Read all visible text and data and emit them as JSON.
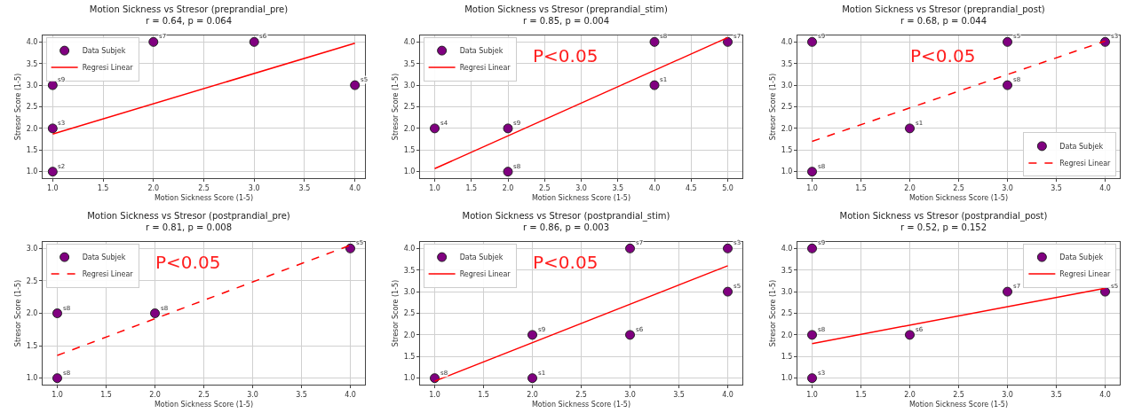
{
  "chart_data": [
    {
      "type": "scatter",
      "title": "Motion Sickness vs Stresor (preprandial_pre)",
      "subtitle": "r = 0.64, p = 0.064",
      "xlabel": "Motion Sickness Score (1-5)",
      "ylabel": "Stresor Score (1-5)",
      "xlim": [
        0.9,
        4.1
      ],
      "xticks": [
        {
          "value": 1,
          "label": "1.0"
        },
        1.5,
        {
          "value": 2,
          "label": "2.0"
        },
        2.5,
        {
          "value": 3,
          "label": "3.0"
        },
        3.5,
        {
          "value": 4,
          "label": "4.0"
        }
      ],
      "ylim": [
        0.85,
        4.15
      ],
      "yticks": [
        {
          "value": 1,
          "label": "1.0"
        },
        1.5,
        {
          "value": 2,
          "label": "2.0"
        },
        2.5,
        {
          "value": 3,
          "label": "3.0"
        },
        3.5,
        {
          "value": 4,
          "label": "4.0"
        }
      ],
      "grid": true,
      "legend": "top left",
      "series": [
        {
          "name": "Data Subjek",
          "type": "scatter",
          "marker": "circle",
          "color": "#800080",
          "x": [
            1,
            1,
            1,
            2,
            3,
            4
          ],
          "values": [
            1,
            2,
            3,
            4,
            4,
            3
          ]
        },
        {
          "name": "Regresi Linear",
          "type": "line",
          "line_style": "solid",
          "color": "#ff0000",
          "x": [
            1,
            4
          ],
          "values": [
            1.87,
            3.97
          ]
        }
      ],
      "annotations": [
        {
          "text": "s2",
          "x": 1,
          "y": 1
        },
        {
          "text": "s3",
          "x": 1,
          "y": 2
        },
        {
          "text": "s9",
          "x": 1,
          "y": 3
        },
        {
          "text": "s7",
          "x": 2,
          "y": 4
        },
        {
          "text": "s6",
          "x": 3,
          "y": 4
        },
        {
          "text": "s5",
          "x": 4,
          "y": 3
        }
      ]
    },
    {
      "type": "scatter",
      "title": "Motion Sickness vs Stresor (preprandial_stim)",
      "subtitle": "r = 0.85, p = 0.004",
      "xlabel": "Motion Sickness Score (1-5)",
      "ylabel": "Stresor Score (1-5)",
      "xlim": [
        0.8,
        5.2
      ],
      "xticks": [
        {
          "value": 1,
          "label": "1.0"
        },
        1.5,
        {
          "value": 2,
          "label": "2.0"
        },
        2.5,
        {
          "value": 3,
          "label": "3.0"
        },
        3.5,
        {
          "value": 4,
          "label": "4.0"
        },
        4.5,
        {
          "value": 5,
          "label": "5.0"
        }
      ],
      "ylim": [
        0.85,
        4.15
      ],
      "yticks": [
        {
          "value": 1,
          "label": "1.0"
        },
        1.5,
        {
          "value": 2,
          "label": "2.0"
        },
        2.5,
        {
          "value": 3,
          "label": "3.0"
        },
        3.5,
        {
          "value": 4,
          "label": "4.0"
        }
      ],
      "grid": true,
      "legend": "top left",
      "series": [
        {
          "name": "Data Subjek",
          "type": "scatter",
          "marker": "circle",
          "color": "#800080",
          "x": [
            1,
            2,
            2,
            4,
            4,
            5
          ],
          "values": [
            2,
            2,
            1,
            4,
            3,
            4
          ]
        },
        {
          "name": "Regresi Linear",
          "type": "line",
          "line_style": "solid",
          "color": "#ff0000",
          "x": [
            1,
            5
          ],
          "values": [
            1.07,
            4.1
          ]
        }
      ],
      "annotations": [
        {
          "text": "s4",
          "x": 1,
          "y": 2
        },
        {
          "text": "s9",
          "x": 2,
          "y": 2
        },
        {
          "text": "s8",
          "x": 2,
          "y": 1
        },
        {
          "text": "s8",
          "x": 4,
          "y": 4
        },
        {
          "text": "s1",
          "x": 4,
          "y": 3
        },
        {
          "text": "s7",
          "x": 5,
          "y": 4
        },
        "P<0.05"
      ]
    },
    {
      "type": "scatter",
      "title": "Motion Sickness vs Stresor (preprandial_post)",
      "subtitle": "r = 0.68, p = 0.044",
      "xlabel": "Motion Sickness Score (1-5)",
      "ylabel": "Stresor Score (1-5)",
      "xlim": [
        0.85,
        4.15
      ],
      "xticks": [
        {
          "value": 1,
          "label": "1.0"
        },
        1.5,
        {
          "value": 2,
          "label": "2.0"
        },
        2.5,
        {
          "value": 3,
          "label": "3.0"
        },
        3.5,
        {
          "value": 4,
          "label": "4.0"
        }
      ],
      "ylim": [
        0.85,
        4.15
      ],
      "yticks": [
        {
          "value": 1,
          "label": "1.0"
        },
        1.5,
        {
          "value": 2,
          "label": "2.0"
        },
        2.5,
        {
          "value": 3,
          "label": "3.0"
        },
        3.5,
        {
          "value": 4,
          "label": "4.0"
        }
      ],
      "grid": true,
      "legend": "bottom right",
      "series": [
        {
          "name": "Data Subjek",
          "type": "scatter",
          "marker": "circle",
          "color": "#800080",
          "x": [
            1,
            1,
            2,
            3,
            3,
            4
          ],
          "values": [
            4,
            1,
            2,
            4,
            3,
            4
          ]
        },
        {
          "name": "Regresi Linear",
          "type": "line",
          "line_style": "dashed",
          "color": "#ff0000",
          "x": [
            1,
            4
          ],
          "values": [
            1.7,
            4.02
          ]
        }
      ],
      "annotations": [
        {
          "text": "s9",
          "x": 1,
          "y": 4
        },
        {
          "text": "s8",
          "x": 1,
          "y": 1
        },
        {
          "text": "s1",
          "x": 2,
          "y": 2
        },
        {
          "text": "s5",
          "x": 3,
          "y": 4
        },
        {
          "text": "s8",
          "x": 3,
          "y": 3
        },
        {
          "text": "s3",
          "x": 4,
          "y": 4
        },
        "P<0.05"
      ]
    },
    {
      "type": "scatter",
      "title": "Motion Sickness vs Stresor (postprandial_pre)",
      "subtitle": "r = 0.81, p = 0.008",
      "xlabel": "Motion Sickness Score (1-5)",
      "ylabel": "Stresor Score (1-5)",
      "xlim": [
        0.85,
        4.15
      ],
      "xticks": [
        {
          "value": 1,
          "label": "1.0"
        },
        1.5,
        {
          "value": 2,
          "label": "2.0"
        },
        2.5,
        {
          "value": 3,
          "label": "3.0"
        },
        3.5,
        {
          "value": 4,
          "label": "4.0"
        }
      ],
      "ylim": [
        0.9,
        3.1
      ],
      "yticks": [
        {
          "value": 1,
          "label": "1.0"
        },
        1.5,
        {
          "value": 2,
          "label": "2.0"
        },
        2.5,
        {
          "value": 3,
          "label": "3.0"
        }
      ],
      "grid": true,
      "legend": "top left",
      "series": [
        {
          "name": "Data Subjek",
          "type": "scatter",
          "marker": "circle",
          "color": "#800080",
          "x": [
            1,
            1,
            2,
            4
          ],
          "values": [
            2,
            1,
            2,
            3
          ]
        },
        {
          "name": "Regresi Linear",
          "type": "line",
          "line_style": "dashed",
          "color": "#ff0000",
          "x": [
            1,
            4
          ],
          "values": [
            1.35,
            3.05
          ]
        }
      ],
      "annotations": [
        {
          "text": "s8",
          "x": 1,
          "y": 2
        },
        {
          "text": "s8",
          "x": 1,
          "y": 1
        },
        {
          "text": "s8",
          "x": 2,
          "y": 2
        },
        {
          "text": "s5",
          "x": 4,
          "y": 3
        },
        "P<0.05"
      ]
    },
    {
      "type": "scatter",
      "title": "Motion Sickness vs Stresor (postprandial_stim)",
      "subtitle": "r = 0.86, p = 0.003",
      "xlabel": "Motion Sickness Score (1-5)",
      "ylabel": "Stresor Score (1-5)",
      "xlim": [
        0.85,
        4.15
      ],
      "xticks": [
        {
          "value": 1,
          "label": "1.0"
        },
        1.5,
        {
          "value": 2,
          "label": "2.0"
        },
        2.5,
        {
          "value": 3,
          "label": "3.0"
        },
        3.5,
        {
          "value": 4,
          "label": "4.0"
        }
      ],
      "ylim": [
        0.85,
        4.15
      ],
      "yticks": [
        {
          "value": 1,
          "label": "1.0"
        },
        1.5,
        {
          "value": 2,
          "label": "2.0"
        },
        2.5,
        {
          "value": 3,
          "label": "3.0"
        },
        3.5,
        {
          "value": 4,
          "label": "4.0"
        }
      ],
      "grid": true,
      "legend": "top left",
      "series": [
        {
          "name": "Data Subjek",
          "type": "scatter",
          "marker": "circle",
          "color": "#800080",
          "x": [
            1,
            2,
            2,
            3,
            3,
            4,
            4
          ],
          "values": [
            1,
            2,
            1,
            4,
            2,
            4,
            3
          ]
        },
        {
          "name": "Regresi Linear",
          "type": "line",
          "line_style": "solid",
          "color": "#ff0000",
          "x": [
            1,
            4
          ],
          "values": [
            0.93,
            3.6
          ]
        }
      ],
      "annotations": [
        {
          "text": "s8",
          "x": 1,
          "y": 1
        },
        {
          "text": "s9",
          "x": 2,
          "y": 2
        },
        {
          "text": "s1",
          "x": 2,
          "y": 1
        },
        {
          "text": "s7",
          "x": 3,
          "y": 4
        },
        {
          "text": "s6",
          "x": 3,
          "y": 2
        },
        {
          "text": "s3",
          "x": 4,
          "y": 4
        },
        {
          "text": "s5",
          "x": 4,
          "y": 3
        },
        "P<0.05"
      ]
    },
    {
      "type": "scatter",
      "title": "Motion Sickness vs Stresor (postprandial_post)",
      "subtitle": "r = 0.52, p = 0.152",
      "xlabel": "Motion Sickness Score (1-5)",
      "ylabel": "Stresor Score (1-5)",
      "xlim": [
        0.85,
        4.15
      ],
      "xticks": [
        {
          "value": 1,
          "label": "1.0"
        },
        1.5,
        {
          "value": 2,
          "label": "2.0"
        },
        2.5,
        {
          "value": 3,
          "label": "3.0"
        },
        3.5,
        {
          "value": 4,
          "label": "4.0"
        }
      ],
      "ylim": [
        0.85,
        4.15
      ],
      "yticks": [
        {
          "value": 1,
          "label": "1.0"
        },
        1.5,
        {
          "value": 2,
          "label": "2.0"
        },
        2.5,
        {
          "value": 3,
          "label": "3.0"
        },
        3.5,
        {
          "value": 4,
          "label": "4.0"
        }
      ],
      "grid": true,
      "legend": "top right",
      "series": [
        {
          "name": "Data Subjek",
          "type": "scatter",
          "marker": "circle",
          "color": "#800080",
          "x": [
            1,
            1,
            1,
            2,
            3,
            4
          ],
          "values": [
            4,
            2,
            1,
            2,
            3,
            3
          ]
        },
        {
          "name": "Regresi Linear",
          "type": "line",
          "line_style": "solid",
          "color": "#ff0000",
          "x": [
            1,
            4
          ],
          "values": [
            1.8,
            3.08
          ]
        }
      ],
      "annotations": [
        {
          "text": "s9",
          "x": 1,
          "y": 4
        },
        {
          "text": "s8",
          "x": 1,
          "y": 2
        },
        {
          "text": "s3",
          "x": 1,
          "y": 1
        },
        {
          "text": "s6",
          "x": 2,
          "y": 2
        },
        {
          "text": "s7",
          "x": 3,
          "y": 3
        },
        {
          "text": "s5",
          "x": 4,
          "y": 3
        }
      ]
    }
  ]
}
